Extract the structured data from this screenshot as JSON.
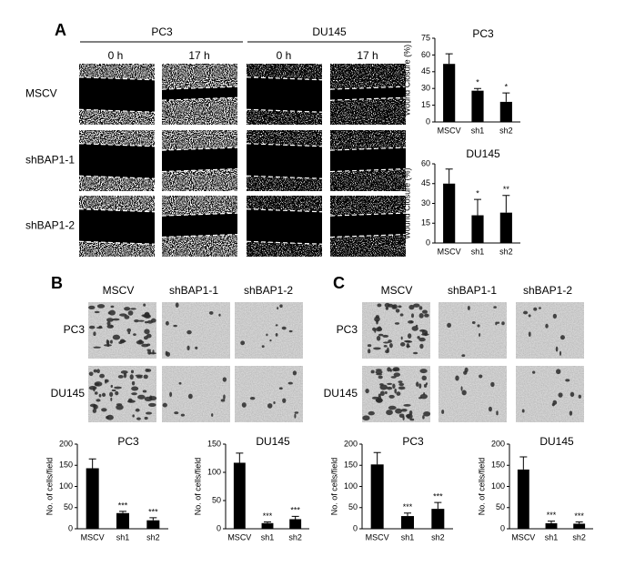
{
  "figure": {
    "panel_labels": [
      "A",
      "B",
      "C"
    ],
    "panel_a": {
      "cell_lines": [
        "PC3",
        "DU145"
      ],
      "timepoints": [
        "0 h",
        "17 h",
        "0 h",
        "17 h"
      ],
      "rows": [
        "MSCV",
        "shBAP1-1",
        "shBAP1-2"
      ]
    },
    "panel_b": {
      "columns": [
        "MSCV",
        "shBAP1-1",
        "shBAP1-2"
      ],
      "rows": [
        "PC3",
        "DU145"
      ]
    },
    "panel_c": {
      "columns": [
        "MSCV",
        "shBAP1-1",
        "shBAP1-2"
      ],
      "rows": [
        "PC3",
        "DU145"
      ]
    }
  },
  "chart_data": [
    {
      "type": "bar",
      "title": "PC3",
      "ylabel": "Wound Closure (%)",
      "categories": [
        "MSCV",
        "sh1",
        "sh2"
      ],
      "values": [
        52,
        28,
        18
      ],
      "errors": [
        9,
        2,
        8
      ],
      "annotations": [
        null,
        "*",
        "*"
      ],
      "color": "#000000",
      "ylim": [
        0,
        75
      ],
      "yticks": [
        0,
        15,
        30,
        45,
        60,
        75
      ]
    },
    {
      "type": "bar",
      "title": "DU145",
      "ylabel": "Wound Closure (%)",
      "categories": [
        "MSCV",
        "sh1",
        "sh2"
      ],
      "values": [
        45,
        21,
        23
      ],
      "errors": [
        11,
        12,
        13
      ],
      "annotations": [
        null,
        "*",
        "**"
      ],
      "color": "#000000",
      "ylim": [
        0,
        60
      ],
      "yticks": [
        0,
        15,
        30,
        45,
        60
      ]
    },
    {
      "type": "bar",
      "title": "PC3",
      "ylabel": "No. of cells/field",
      "categories": [
        "MSCV",
        "sh1",
        "sh2"
      ],
      "values": [
        143,
        37,
        20
      ],
      "errors": [
        22,
        4,
        6
      ],
      "annotations": [
        null,
        "***",
        "***"
      ],
      "color": "#000000",
      "ylim": [
        0,
        200
      ],
      "yticks": [
        0,
        50,
        100,
        150,
        200
      ]
    },
    {
      "type": "bar",
      "title": "DU145",
      "ylabel": "No. of cells/field",
      "categories": [
        "MSCV",
        "sh1",
        "sh2"
      ],
      "values": [
        117,
        10,
        17
      ],
      "errors": [
        17,
        2,
        5
      ],
      "annotations": [
        null,
        "***",
        "***"
      ],
      "color": "#000000",
      "ylim": [
        0,
        150
      ],
      "yticks": [
        0,
        50,
        100,
        150
      ]
    },
    {
      "type": "bar",
      "title": "PC3",
      "ylabel": "No. of cells/field",
      "categories": [
        "MSCV",
        "sh1",
        "sh2"
      ],
      "values": [
        152,
        30,
        47
      ],
      "errors": [
        28,
        7,
        15
      ],
      "annotations": [
        null,
        "***",
        "***"
      ],
      "color": "#000000",
      "ylim": [
        0,
        200
      ],
      "yticks": [
        0,
        50,
        100,
        150,
        200
      ]
    },
    {
      "type": "bar",
      "title": "DU145",
      "ylabel": "No. of cells/field",
      "categories": [
        "MSCV",
        "sh1",
        "sh2"
      ],
      "values": [
        140,
        13,
        12
      ],
      "errors": [
        30,
        5,
        4
      ],
      "annotations": [
        null,
        "***",
        "***"
      ],
      "color": "#000000",
      "ylim": [
        0,
        200
      ],
      "yticks": [
        0,
        50,
        100,
        150,
        200
      ]
    }
  ]
}
